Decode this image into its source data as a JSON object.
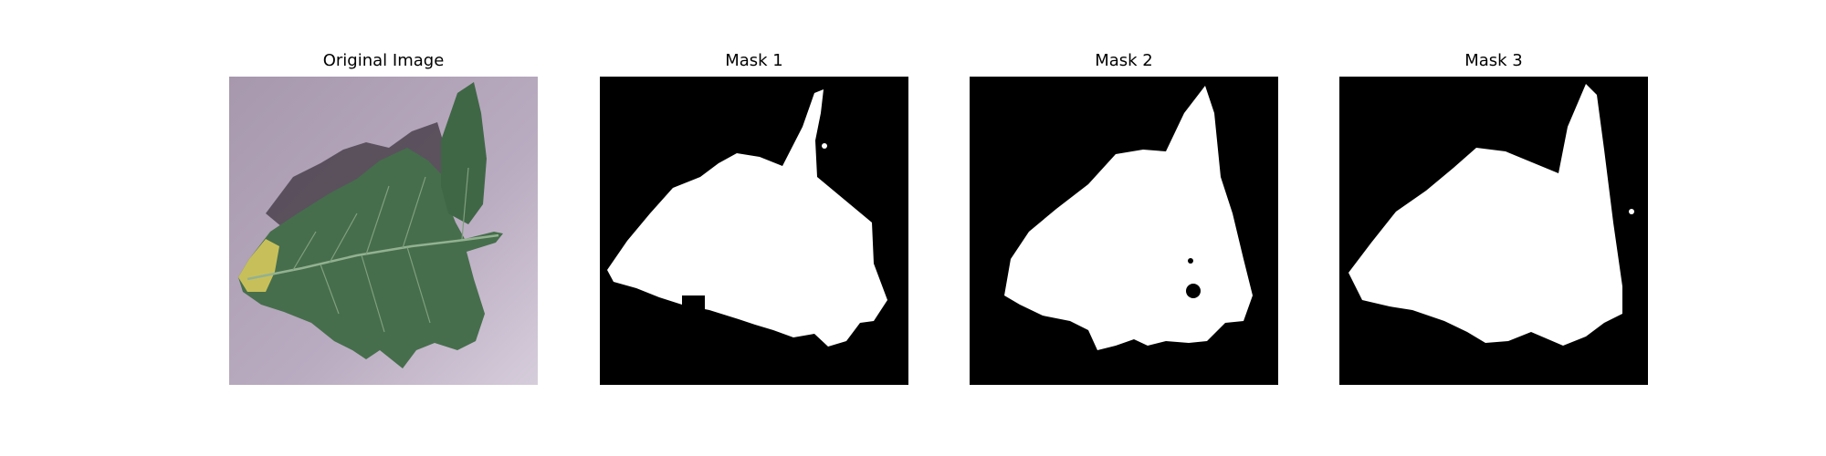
{
  "panels": [
    {
      "title": "Original Image",
      "kind": "photo",
      "background": "#b9a9bd"
    },
    {
      "title": "Mask 1",
      "kind": "mask",
      "background": "#000000",
      "foreground": "#ffffff"
    },
    {
      "title": "Mask 2",
      "kind": "mask",
      "background": "#000000",
      "foreground": "#ffffff"
    },
    {
      "title": "Mask 3",
      "kind": "mask",
      "background": "#000000",
      "foreground": "#ffffff"
    }
  ],
  "colors": {
    "leaf_dark": "#355a3c",
    "leaf_mid": "#4a7450",
    "leaf_vein": "#8fae8c",
    "leaf_yellow": "#c9c45a",
    "shadow": "#3a3238",
    "surface": "#b9a9bd",
    "surface_light": "#d3c8d6"
  }
}
